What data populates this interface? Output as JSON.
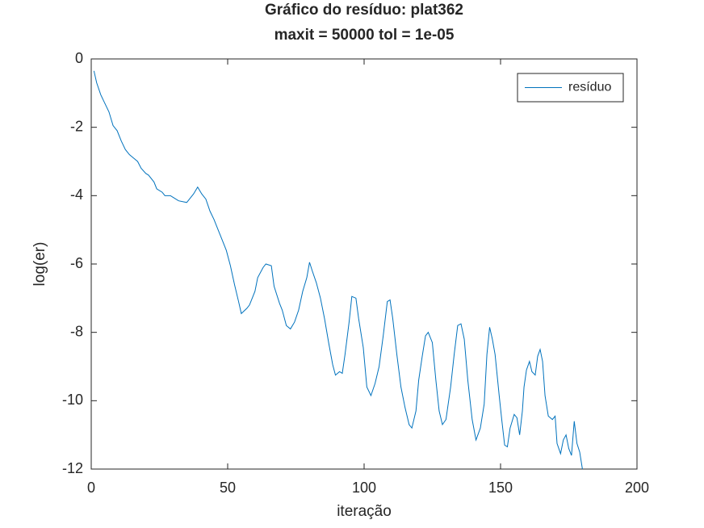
{
  "chart_data": {
    "type": "line",
    "title": "Gráfico do resíduo:  plat362",
    "subtitle": "maxit = 50000 tol = 1e-05",
    "x_label": "iteração",
    "y_label": "log(er)",
    "xlim": [
      0,
      200
    ],
    "xticks": [
      0,
      50,
      100,
      150,
      200
    ],
    "ylim": [
      -12,
      0
    ],
    "yticks": [
      -12,
      -10,
      -8,
      -6,
      -4,
      -2,
      0
    ],
    "legend": "upper right",
    "series": [
      {
        "name": "resíduo",
        "color": "#0072bd",
        "x": [
          1,
          2,
          3.5,
          5,
          6.5,
          8,
          9.5,
          11,
          12.5,
          14,
          15.5,
          17,
          18.3,
          20,
          21,
          23,
          24,
          26,
          27,
          29,
          30,
          32,
          35,
          36,
          37.5,
          39,
          40.5,
          42,
          43.5,
          45,
          46.5,
          48,
          49.5,
          51,
          52.5,
          54,
          55,
          57,
          58,
          60,
          61,
          63,
          64,
          66,
          67,
          69,
          70,
          71.5,
          73,
          74.5,
          76,
          77.5,
          79,
          80,
          81,
          82.5,
          84,
          85.5,
          87,
          88.5,
          89.5,
          91,
          92,
          93,
          94.5,
          95.5,
          97,
          98,
          99.7,
          101,
          102.5,
          104,
          105.5,
          107,
          108.5,
          109.5,
          110.5,
          112,
          113.5,
          115,
          116.5,
          117.5,
          119,
          120,
          121.3,
          122.5,
          123.5,
          125,
          126.3,
          127.5,
          128.7,
          130,
          131.7,
          133,
          134.3,
          135.5,
          136.7,
          138,
          139.6,
          141,
          142.6,
          144,
          145,
          146,
          147,
          148,
          149.5,
          150.5,
          151.5,
          152.5,
          153.5,
          155,
          156,
          157,
          158,
          158.6,
          159.5,
          160.6,
          161.5,
          162.7,
          163.6,
          164.5,
          165.4,
          166.3,
          167.5,
          169,
          170,
          170.7,
          172,
          173,
          174,
          175,
          176,
          177,
          178,
          179,
          180
        ],
        "values": [
          -0.35,
          -0.7,
          -1.05,
          -1.3,
          -1.55,
          -1.95,
          -2.1,
          -2.4,
          -2.65,
          -2.8,
          -2.9,
          -3.0,
          -3.2,
          -3.35,
          -3.4,
          -3.6,
          -3.8,
          -3.9,
          -4.0,
          -4.0,
          -4.05,
          -4.15,
          -4.2,
          -4.1,
          -3.95,
          -3.75,
          -3.95,
          -4.1,
          -4.45,
          -4.7,
          -5.0,
          -5.3,
          -5.6,
          -6.05,
          -6.6,
          -7.1,
          -7.45,
          -7.3,
          -7.2,
          -6.8,
          -6.4,
          -6.1,
          -6.0,
          -6.05,
          -6.65,
          -7.15,
          -7.35,
          -7.8,
          -7.9,
          -7.7,
          -7.35,
          -6.8,
          -6.4,
          -5.95,
          -6.2,
          -6.55,
          -7.0,
          -7.6,
          -8.3,
          -8.95,
          -9.25,
          -9.15,
          -9.2,
          -8.65,
          -7.7,
          -6.95,
          -7.0,
          -7.6,
          -8.45,
          -9.6,
          -9.85,
          -9.5,
          -9.0,
          -8.1,
          -7.1,
          -7.05,
          -7.6,
          -8.65,
          -9.6,
          -10.2,
          -10.7,
          -10.8,
          -10.3,
          -9.4,
          -8.7,
          -8.1,
          -8.0,
          -8.3,
          -9.4,
          -10.3,
          -10.7,
          -10.55,
          -9.6,
          -8.65,
          -7.8,
          -7.75,
          -8.2,
          -9.4,
          -10.55,
          -11.15,
          -10.8,
          -10.1,
          -8.65,
          -7.85,
          -8.2,
          -8.65,
          -9.85,
          -10.6,
          -11.3,
          -11.35,
          -10.8,
          -10.4,
          -10.5,
          -11.0,
          -10.3,
          -9.6,
          -9.1,
          -8.85,
          -9.15,
          -9.25,
          -8.7,
          -8.5,
          -8.85,
          -9.85,
          -10.45,
          -10.55,
          -10.45,
          -11.25,
          -11.55,
          -11.15,
          -11.0,
          -11.4,
          -11.6,
          -10.6,
          -11.25,
          -11.5,
          -12.0
        ]
      }
    ]
  }
}
